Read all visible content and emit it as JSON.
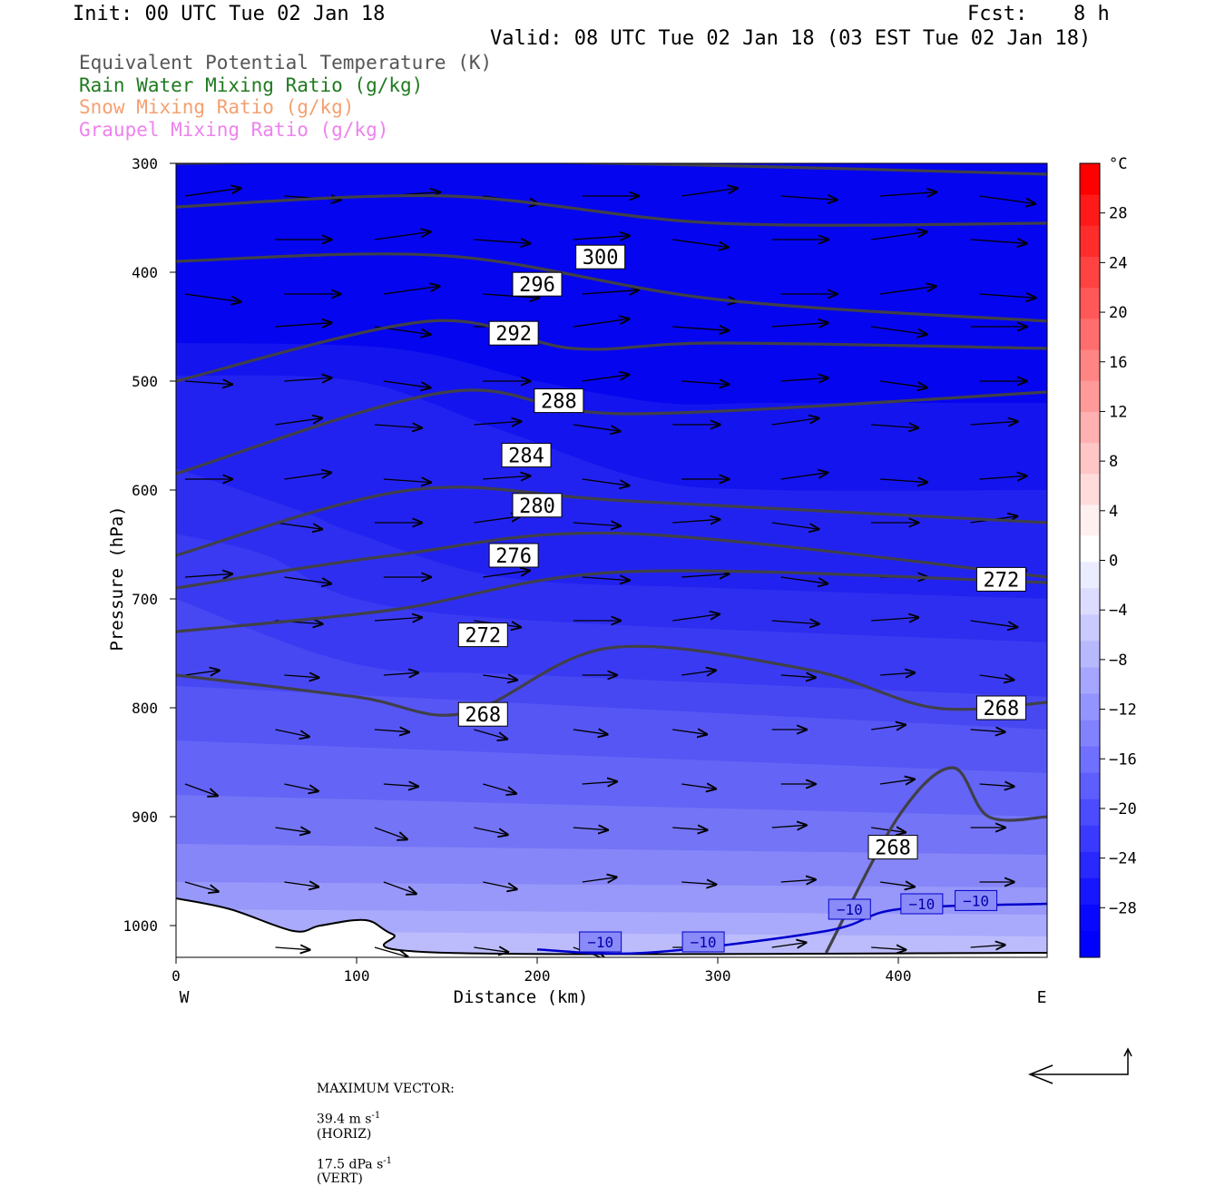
{
  "header": {
    "init": "Init: 00 UTC Tue 02 Jan 18",
    "fcst_label": "Fcst:",
    "fcst_value": "8 h",
    "valid": "Valid: 08 UTC Tue 02 Jan 18 (03 EST Tue 02 Jan 18)"
  },
  "legend": [
    {
      "text": "Equivalent Potential Temperature (K)",
      "color": "#555555"
    },
    {
      "text": "Rain Water Mixing Ratio (g/kg)",
      "color": "#1f7a1f"
    },
    {
      "text": "Snow Mixing Ratio (g/kg)",
      "color": "#f4a070"
    },
    {
      "text": "Graupel Mixing Ratio (g/kg)",
      "color": "#ee82ee"
    }
  ],
  "footer": {
    "max_label": "MAXIMUM VECTOR:",
    "horiz_value": "39.4 m s",
    "horiz_exp": "-1",
    "horiz_tag": "(HORIZ)",
    "vert_value": "17.5 dPa s",
    "vert_exp": "-1",
    "vert_tag": "(VERT)"
  },
  "chart_data": {
    "type": "cross-section",
    "xlabel": "Distance (km)",
    "ylabel": "Pressure (hPa)",
    "xlim": [
      0,
      483
    ],
    "ylim": [
      1030,
      300
    ],
    "y_scale": "linear, inverted",
    "x_ticks": [
      0,
      100,
      200,
      300,
      400
    ],
    "y_ticks": [
      300,
      400,
      500,
      600,
      700,
      800,
      900,
      1000
    ],
    "x_endpoints": {
      "left": "W",
      "right": "E"
    },
    "colorbar": {
      "unit": "°C",
      "tick_labels": [
        "28",
        "24",
        "20",
        "16",
        "12",
        "8",
        "4",
        "0",
        "−4",
        "−8",
        "−12",
        "−16",
        "−20",
        "−24",
        "−28"
      ],
      "tick_values": [
        28,
        24,
        20,
        16,
        12,
        8,
        4,
        0,
        -4,
        -8,
        -12,
        -16,
        -20,
        -24,
        -28
      ],
      "range": [
        -32,
        32
      ],
      "colors_warm": [
        "#fff0f0",
        "#ffdcdc",
        "#ffc6c6",
        "#ffb0b0",
        "#ff9a9a",
        "#ff8484",
        "#ff6e6e",
        "#ff5858",
        "#ff4242",
        "#ff2c2c",
        "#ff1a1a",
        "#ff0000"
      ],
      "colors_cold": [
        "#ffffff",
        "#ececff",
        "#dcdcff",
        "#cacaff",
        "#b8b8ff",
        "#a6a6ff",
        "#9494ff",
        "#8282ff",
        "#7070ff",
        "#5e5eff",
        "#4c4cff",
        "#3a3aff",
        "#2828ff",
        "#1616ff",
        "#0808ff",
        "#0000ff"
      ]
    },
    "temperature_fill_levels": [
      {
        "upper_pressure": [
          470,
          470,
          470,
          470,
          470,
          470,
          470,
          470,
          470
        ],
        "color": "#1212ee"
      },
      {
        "upper_pressure": [
          500,
          500,
          530,
          540,
          540,
          560,
          560,
          560,
          560
        ],
        "color": "#2121f0"
      }
    ],
    "theta_e_contours": [
      {
        "label": "300",
        "x": [
          0,
          150,
          300,
          483
        ],
        "p": [
          300,
          298,
          302,
          310
        ]
      },
      {
        "label": "296",
        "x": [
          0,
          150,
          300,
          483
        ],
        "p": [
          340,
          330,
          355,
          355
        ]
      },
      {
        "label": "292",
        "x": [
          0,
          150,
          300,
          483
        ],
        "p": [
          390,
          385,
          425,
          445
        ]
      },
      {
        "label": "288",
        "x": [
          0,
          140,
          220,
          300,
          483
        ],
        "p": [
          500,
          445,
          470,
          465,
          470
        ]
      },
      {
        "label": "284",
        "x": [
          0,
          150,
          250,
          483
        ],
        "p": [
          585,
          510,
          530,
          510
        ]
      },
      {
        "label": "280",
        "x": [
          0,
          130,
          250,
          483
        ],
        "p": [
          660,
          600,
          610,
          630
        ]
      },
      {
        "label": "276",
        "x": [
          0,
          120,
          250,
          483
        ],
        "p": [
          690,
          660,
          640,
          680
        ]
      },
      {
        "label": "272",
        "x": [
          0,
          120,
          250,
          483
        ],
        "p": [
          730,
          710,
          675,
          685
        ]
      },
      {
        "label": "268",
        "x": [
          0,
          100,
          160,
          240,
          350,
          420,
          483
        ],
        "p": [
          770,
          790,
          805,
          745,
          765,
          800,
          795
        ]
      },
      {
        "label": "268",
        "x": [
          360,
          400,
          430,
          450,
          483
        ],
        "p": [
          1025,
          900,
          855,
          900,
          900
        ]
      }
    ],
    "contour_labels": [
      {
        "text": "300",
        "x": 235,
        "p": 386
      },
      {
        "text": "296",
        "x": 200,
        "p": 411
      },
      {
        "text": "292",
        "x": 187,
        "p": 456
      },
      {
        "text": "288",
        "x": 212,
        "p": 518
      },
      {
        "text": "284",
        "x": 194,
        "p": 568
      },
      {
        "text": "280",
        "x": 200,
        "p": 614
      },
      {
        "text": "276",
        "x": 187,
        "p": 660
      },
      {
        "text": "272",
        "x": 170,
        "p": 733
      },
      {
        "text": "268",
        "x": 170,
        "p": 806
      },
      {
        "text": "272",
        "x": 457,
        "p": 682
      },
      {
        "text": "268",
        "x": 457,
        "p": 800
      },
      {
        "text": "268",
        "x": 397,
        "p": 928
      }
    ],
    "isotherm_minus10": {
      "label": "−10",
      "x": [
        200,
        260,
        360,
        400,
        483
      ],
      "p": [
        1022,
        1025,
        1005,
        985,
        980
      ],
      "label_positions": [
        {
          "x": 235,
          "p": 1015
        },
        {
          "x": 292,
          "p": 1015
        },
        {
          "x": 373,
          "p": 985
        },
        {
          "x": 413,
          "p": 980
        },
        {
          "x": 443,
          "p": 977
        }
      ]
    },
    "terrain": {
      "x": [
        0,
        30,
        65,
        80,
        105,
        120,
        150,
        483
      ],
      "p": [
        975,
        985,
        1005,
        1000,
        995,
        1008,
        1025,
        1025
      ]
    },
    "wind_vector_rows_p": [
      330,
      370,
      420,
      450,
      500,
      540,
      590,
      630,
      680,
      720,
      770,
      820,
      870,
      910,
      960,
      1020
    ]
  }
}
